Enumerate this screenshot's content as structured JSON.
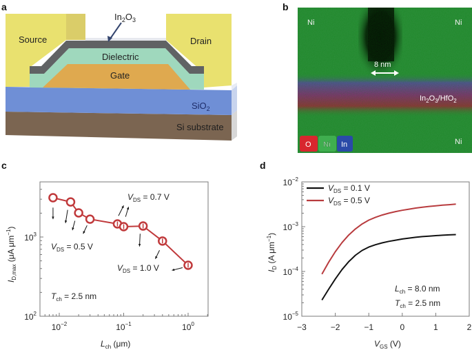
{
  "panels": {
    "a": {
      "label": "a",
      "layers": {
        "source": "Source",
        "drain": "Drain",
        "channel_main": "In",
        "channel_sub1": "2",
        "channel_mid": "O",
        "channel_sub2": "3",
        "dielectric": "Dielectric",
        "gate": "Gate",
        "oxide_main": "SiO",
        "oxide_sub": "2",
        "substrate": "Si substrate"
      },
      "colors": {
        "contact": "#e9e16f",
        "channel": "#606264",
        "dielectric": "#9fd8bd",
        "gate": "#dfa94f",
        "oxide": "#6f8fd6",
        "substrate": "#7b6551"
      }
    },
    "b": {
      "label": "b",
      "labels": {
        "ni_top_left": "Ni",
        "ni_top_right": "Ni",
        "ni_bottom_right": "Ni",
        "scale": "8 nm",
        "layer_main": "In",
        "layer_sub1": "2",
        "layer_mid": "O",
        "layer_sub2": "3",
        "layer_rest": "/HfO",
        "layer_sub3": "2"
      },
      "legend": [
        {
          "label": "O",
          "color": "#d8262e"
        },
        {
          "label": "Ni",
          "color": "#3fae4f"
        },
        {
          "label": "In",
          "color": "#2a4aa8"
        }
      ]
    },
    "c": {
      "label": "c"
    },
    "d": {
      "label": "d"
    }
  },
  "chart_data": [
    {
      "id": "c",
      "type": "scatter",
      "title": "",
      "xlabel": "L_ch (μm)",
      "xlabel_main": "L",
      "xlabel_sub": "ch",
      "xlabel_unit": " (μm)",
      "ylabel": "I_D,max (μA μm^-1)",
      "ylabel_main": "I",
      "ylabel_sub": "D,max",
      "ylabel_unit": " (μA μm",
      "ylabel_sup": "−1",
      "ylabel_close": ")",
      "xscale": "log",
      "yscale": "log",
      "xlim": [
        0.0055,
        2.0
      ],
      "ylim": [
        100,
        5000
      ],
      "xticks": [
        {
          "value": 0.01,
          "base": "10",
          "exp": "−2"
        },
        {
          "value": 0.1,
          "base": "10",
          "exp": "−1"
        },
        {
          "value": 1,
          "base": "10",
          "exp": "0"
        }
      ],
      "yticks": [
        {
          "value": 100,
          "base": "10",
          "exp": "2"
        },
        {
          "value": 1000,
          "base": "10",
          "exp": "3"
        }
      ],
      "series": [
        {
          "name": "I_D,max",
          "color": "#c0393b",
          "x": [
            0.008,
            0.015,
            0.02,
            0.03,
            0.08,
            0.1,
            0.2,
            0.4,
            1.0
          ],
          "y": [
            3130,
            2770,
            2015,
            1680,
            1463,
            1350,
            1376,
            890,
            440
          ],
          "error_bar": [
            false,
            false,
            false,
            false,
            true,
            true,
            true,
            true,
            true
          ]
        }
      ],
      "annotations": [
        {
          "text_main": "V",
          "text_sub": "DS",
          "text_rest": " = 0.7 V",
          "at": [
            0.135,
            3800
          ]
        },
        {
          "text_main": "V",
          "text_sub": "DS",
          "text_rest": " = 0.5 V",
          "at": [
            0.0075,
            900
          ]
        },
        {
          "text_main": "V",
          "text_sub": "DS",
          "text_rest": " = 1.0 V",
          "at": [
            0.15,
            480
          ]
        },
        {
          "text_main": "T",
          "text_sub": "ch",
          "text_rest": " = 2.5 nm",
          "at": [
            0.0075,
            220
          ]
        }
      ],
      "arrows": [
        {
          "from": [
            0.008,
            2350
          ],
          "to": [
            0.008,
            1680
          ],
          "label": "down"
        },
        {
          "from": [
            0.0135,
            2200
          ],
          "to": [
            0.0125,
            1500
          ],
          "label": "down"
        },
        {
          "from": [
            0.0175,
            1600
          ],
          "to": [
            0.016,
            1220
          ],
          "label": "down"
        },
        {
          "from": [
            0.027,
            1400
          ],
          "to": [
            0.0235,
            1100
          ],
          "label": "down"
        },
        {
          "from": [
            0.083,
            1850
          ],
          "to": [
            0.1,
            2500
          ],
          "label": "up"
        },
        {
          "from": [
            0.107,
            1800
          ],
          "to": [
            0.119,
            2400
          ],
          "label": "up"
        },
        {
          "from": [
            0.18,
            1100
          ],
          "to": [
            0.176,
            760
          ],
          "label": "down"
        },
        {
          "from": [
            0.36,
            680
          ],
          "to": [
            0.31,
            530
          ],
          "label": "down"
        },
        {
          "from": [
            0.82,
            410
          ],
          "to": [
            0.56,
            380
          ],
          "label": "left"
        }
      ],
      "grid": false
    },
    {
      "id": "d",
      "type": "line",
      "title": "",
      "xlabel": "V_GS (V)",
      "xlabel_main": "V",
      "xlabel_sub": "GS",
      "xlabel_unit": " (V)",
      "ylabel": "I_D (A μm^-1)",
      "ylabel_main": "I",
      "ylabel_sub": "D",
      "ylabel_unit": " (A μm",
      "ylabel_sup": "−1",
      "ylabel_close": ")",
      "xscale": "linear",
      "yscale": "log",
      "xlim": [
        -3,
        2
      ],
      "ylim": [
        1e-05,
        0.01
      ],
      "xticks": [
        {
          "value": -3,
          "label": "−3"
        },
        {
          "value": -2,
          "label": "−2"
        },
        {
          "value": -1,
          "label": "−1"
        },
        {
          "value": 0,
          "label": "0"
        },
        {
          "value": 1,
          "label": "1"
        },
        {
          "value": 2,
          "label": "2"
        }
      ],
      "yticks": [
        {
          "value": 1e-05,
          "base": "10",
          "exp": "−5"
        },
        {
          "value": 0.0001,
          "base": "10",
          "exp": "−4"
        },
        {
          "value": 0.001,
          "base": "10",
          "exp": "−3"
        },
        {
          "value": 0.01,
          "base": "10",
          "exp": "−2"
        }
      ],
      "legend_position": "top-left",
      "series": [
        {
          "name": "V_DS = 0.1 V",
          "legend_main": "V",
          "legend_sub": "DS",
          "legend_rest": " = 0.1 V",
          "color": "#111111",
          "x": [
            -2.4,
            -2.2,
            -2.0,
            -1.8,
            -1.6,
            -1.4,
            -1.2,
            -1.0,
            -0.8,
            -0.6,
            -0.4,
            -0.2,
            0.0,
            0.2,
            0.4,
            0.6,
            0.8,
            1.0,
            1.2,
            1.4,
            1.6
          ],
          "y": [
            2.3e-05,
            4e-05,
            6.8e-05,
            0.00011,
            0.000165,
            0.00023,
            0.000295,
            0.00035,
            0.000395,
            0.000435,
            0.00047,
            0.0005,
            0.00053,
            0.000555,
            0.00058,
            0.0006,
            0.000615,
            0.00063,
            0.000645,
            0.000655,
            0.000665
          ]
        },
        {
          "name": "V_DS = 0.5 V",
          "legend_main": "V",
          "legend_sub": "DS",
          "legend_rest": " = 0.5 V",
          "color": "#b83b3e",
          "x": [
            -2.4,
            -2.2,
            -2.0,
            -1.8,
            -1.6,
            -1.4,
            -1.2,
            -1.0,
            -0.8,
            -0.6,
            -0.4,
            -0.2,
            0.0,
            0.2,
            0.4,
            0.6,
            0.8,
            1.0,
            1.2,
            1.4,
            1.6
          ],
          "y": [
            8.7e-05,
            0.00016,
            0.000275,
            0.00044,
            0.00065,
            0.00089,
            0.00115,
            0.0014,
            0.00162,
            0.00182,
            0.002,
            0.00217,
            0.00232,
            0.00246,
            0.0026,
            0.00272,
            0.00283,
            0.00293,
            0.00302,
            0.0031,
            0.00318
          ]
        }
      ],
      "annotations": [
        {
          "text_main": "L",
          "text_sub": "ch",
          "text_rest": " = 8.0 nm"
        },
        {
          "text_main": "T",
          "text_sub": "ch",
          "text_rest": " = 2.5 nm"
        }
      ],
      "grid": false
    }
  ]
}
